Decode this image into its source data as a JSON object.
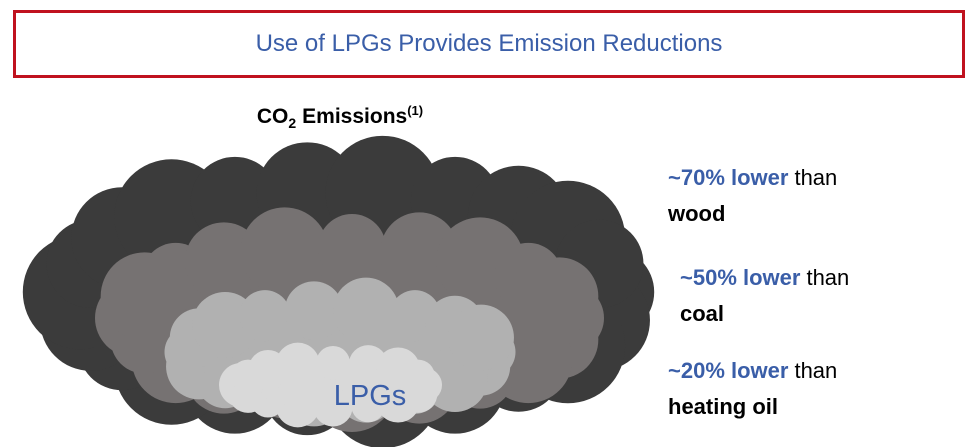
{
  "header": {
    "title": "Use of LPGs Provides Emission Reductions"
  },
  "subtitle": {
    "main": "CO",
    "subscript": "2",
    "text": "Emissions",
    "superscript": "(1)"
  },
  "cloud": {
    "label": "LPGs"
  },
  "comparisons": [
    {
      "amount": "~70% lower",
      "connector": "than",
      "fuel": "wood"
    },
    {
      "amount": "~50% lower",
      "connector": "than",
      "fuel": "coal"
    },
    {
      "amount": "~20% lower",
      "connector": "than",
      "fuel": "heating oil"
    }
  ]
}
